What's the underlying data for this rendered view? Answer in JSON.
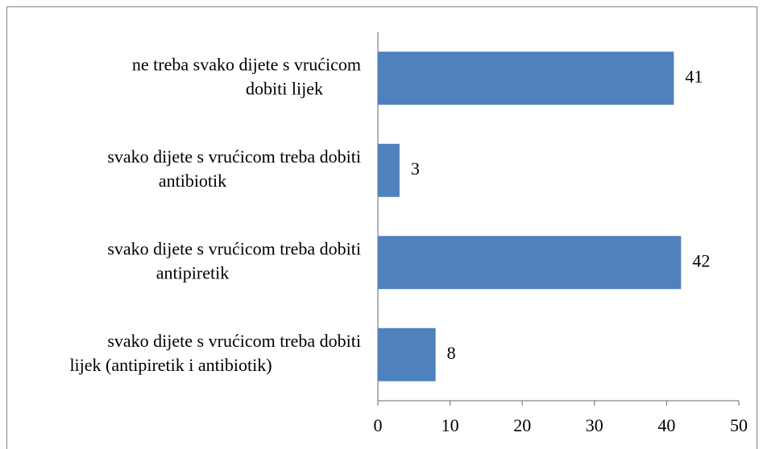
{
  "chart_data": {
    "type": "bar",
    "orientation": "horizontal",
    "categories": [
      "ne treba svako dijete s vrućicom\ndobiti lijek",
      "svako dijete s vrućicom treba dobiti\nantibiotik",
      "svako dijete s vrućicom treba dobiti\nantipiretik",
      "svako dijete s vrućicom treba dobiti\nlijek (antipiretik i antibiotik)"
    ],
    "values": [
      41,
      3,
      42,
      8
    ],
    "color": "#4f81bd",
    "xlim": [
      0,
      50
    ],
    "xticks": [
      0,
      10,
      20,
      30,
      40,
      50
    ],
    "grid": false
  }
}
